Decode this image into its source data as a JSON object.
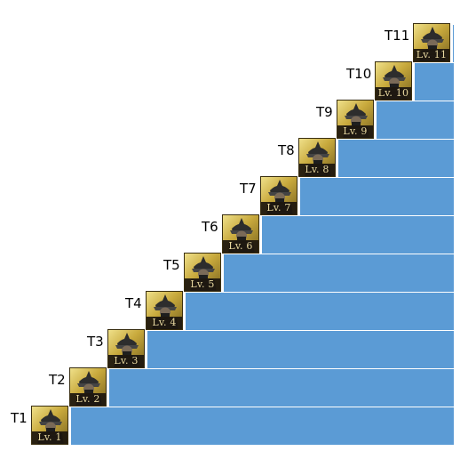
{
  "palette": {
    "bar": "#5b9bd5",
    "background": "#ffffff",
    "badge_text": "#e9d9a0"
  },
  "tiers": [
    {
      "tier": "T1",
      "level": "Lv. 1",
      "icon": "samurai-portrait"
    },
    {
      "tier": "T2",
      "level": "Lv. 2",
      "icon": "samurai-portrait"
    },
    {
      "tier": "T3",
      "level": "Lv. 3",
      "icon": "samurai-portrait"
    },
    {
      "tier": "T4",
      "level": "Lv. 4",
      "icon": "samurai-portrait"
    },
    {
      "tier": "T5",
      "level": "Lv. 5",
      "icon": "samurai-portrait"
    },
    {
      "tier": "T6",
      "level": "Lv. 6",
      "icon": "samurai-portrait"
    },
    {
      "tier": "T7",
      "level": "Lv. 7",
      "icon": "samurai-portrait"
    },
    {
      "tier": "T8",
      "level": "Lv. 8",
      "icon": "samurai-portrait"
    },
    {
      "tier": "T9",
      "level": "Lv. 9",
      "icon": "samurai-portrait"
    },
    {
      "tier": "T10",
      "level": "Lv. 10",
      "icon": "samurai-portrait"
    },
    {
      "tier": "T11",
      "level": "Lv. 11",
      "icon": "samurai-portrait"
    }
  ]
}
